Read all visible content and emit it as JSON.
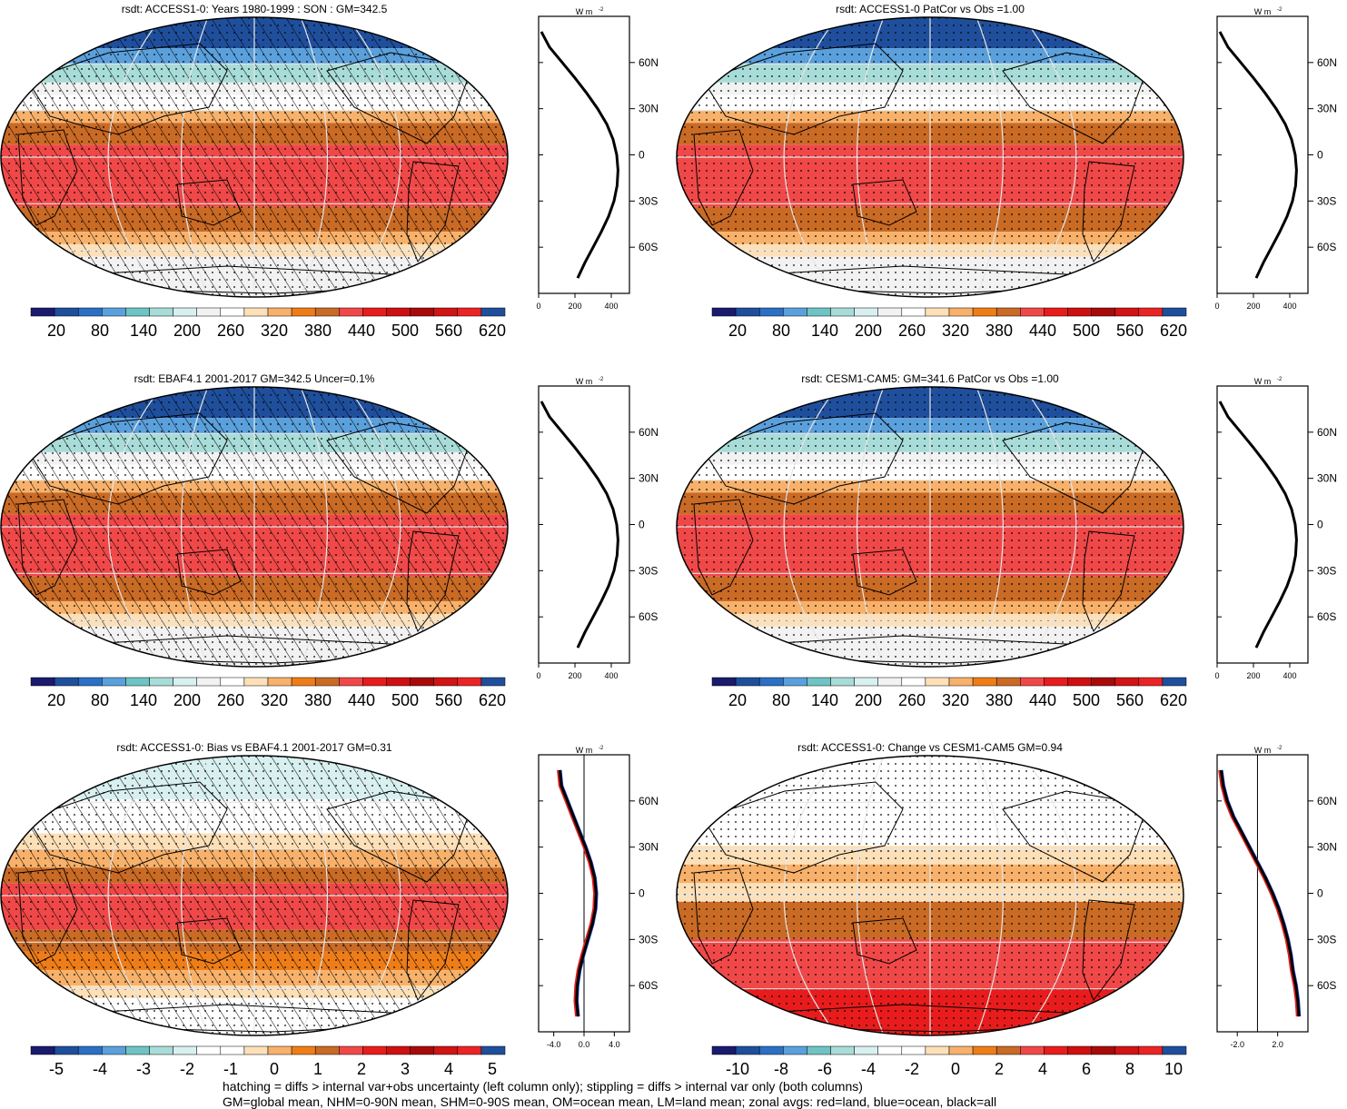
{
  "palette_abs": [
    "#1a1a6e",
    "#1f4f9c",
    "#2b70c4",
    "#5aa0dc",
    "#6ec4c4",
    "#a8dcd8",
    "#d8f0f0",
    "#f2f2f2",
    "#ffffff",
    "#fde0b8",
    "#f7b16a",
    "#ee7d18",
    "#c96a25",
    "#f04848",
    "#e81c1c",
    "#cf1010",
    "#a80a0a",
    "#d11414",
    "#ea2424",
    "#1f4f9c"
  ],
  "palette_bias": [
    "#1a1a6e",
    "#1f4f9c",
    "#2b70c4",
    "#5aa0dc",
    "#6ec4c4",
    "#a8dcd8",
    "#d8f0f0",
    "#ffffff",
    "#ffffff",
    "#fde0b8",
    "#f7b16a",
    "#ee7d18",
    "#c96a25",
    "#f04848",
    "#e81c1c",
    "#cf1010",
    "#a80a0a",
    "#d11414",
    "#ea2424",
    "#1f4f9c"
  ],
  "footer": {
    "line1": "hatching = diffs > internal var+obs uncertainty (left column only); stippling = diffs > internal var only (both columns)",
    "line2": "GM=global mean, NHM=0-90N mean, SHM=0-90S mean, OM=ocean mean, LM=land mean; zonal avgs: red=land, blue=ocean, black=all"
  },
  "chart_data": [
    {
      "type": "heatmap",
      "title": "rsdt: ACCESS1-0: Years 1980-1999 : SON : GM=342.5",
      "colorbar_labels": [
        "20",
        "80",
        "140",
        "200",
        "260",
        "320",
        "380",
        "440",
        "500",
        "560",
        "620"
      ],
      "hatched": true,
      "zonal": {
        "unit": "W m",
        "xticks": [
          "0",
          "200",
          "400"
        ],
        "xlim": [
          0,
          500
        ],
        "yticks": [
          "60N",
          "30N",
          "0",
          "30S",
          "60S"
        ],
        "lat": [
          80,
          70,
          60,
          50,
          40,
          30,
          20,
          10,
          0,
          -10,
          -20,
          -30,
          -40,
          -50,
          -60,
          -70,
          -80
        ],
        "values": [
          15,
          60,
          130,
          200,
          265,
          325,
          375,
          410,
          430,
          437,
          432,
          415,
          385,
          345,
          300,
          255,
          215
        ]
      }
    },
    {
      "type": "heatmap",
      "title": "rsdt: ACCESS1-0 PatCor vs Obs =1.00",
      "colorbar_labels": [
        "20",
        "80",
        "140",
        "200",
        "260",
        "320",
        "380",
        "440",
        "500",
        "560",
        "620"
      ],
      "hatched": false,
      "zonal": {
        "unit": "W m",
        "xticks": [
          "0",
          "200",
          "400"
        ],
        "xlim": [
          0,
          500
        ],
        "yticks": [
          "60N",
          "30N",
          "0",
          "30S",
          "60S"
        ],
        "lat": [
          80,
          70,
          60,
          50,
          40,
          30,
          20,
          10,
          0,
          -10,
          -20,
          -30,
          -40,
          -50,
          -60,
          -70,
          -80
        ],
        "values": [
          15,
          60,
          130,
          200,
          265,
          325,
          375,
          410,
          430,
          437,
          432,
          415,
          385,
          345,
          300,
          255,
          215
        ]
      }
    },
    {
      "type": "heatmap",
      "title": "rsdt: EBAF4.1 2001-2017 GM=342.5 Uncer=0.1%",
      "colorbar_labels": [
        "20",
        "80",
        "140",
        "200",
        "260",
        "320",
        "380",
        "440",
        "500",
        "560",
        "620"
      ],
      "hatched": true,
      "zonal": {
        "unit": "W m",
        "xticks": [
          "0",
          "200",
          "400"
        ],
        "xlim": [
          0,
          500
        ],
        "yticks": [
          "60N",
          "30N",
          "0",
          "30S",
          "60S"
        ],
        "lat": [
          80,
          70,
          60,
          50,
          40,
          30,
          20,
          10,
          0,
          -10,
          -20,
          -30,
          -40,
          -50,
          -60,
          -70,
          -80
        ],
        "values": [
          15,
          60,
          130,
          200,
          265,
          325,
          375,
          410,
          430,
          437,
          432,
          415,
          385,
          345,
          300,
          255,
          215
        ]
      }
    },
    {
      "type": "heatmap",
      "title": "rsdt: CESM1-CAM5: GM=341.6 PatCor vs Obs =1.00",
      "colorbar_labels": [
        "20",
        "80",
        "140",
        "200",
        "260",
        "320",
        "380",
        "440",
        "500",
        "560",
        "620"
      ],
      "hatched": false,
      "zonal": {
        "unit": "W m",
        "xticks": [
          "0",
          "200",
          "400"
        ],
        "xlim": [
          0,
          500
        ],
        "yticks": [
          "60N",
          "30N",
          "0",
          "30S",
          "60S"
        ],
        "lat": [
          80,
          70,
          60,
          50,
          40,
          30,
          20,
          10,
          0,
          -10,
          -20,
          -30,
          -40,
          -50,
          -60,
          -70,
          -80
        ],
        "values": [
          15,
          60,
          130,
          200,
          265,
          325,
          375,
          410,
          430,
          437,
          432,
          415,
          385,
          345,
          300,
          255,
          215
        ]
      }
    },
    {
      "type": "heatmap",
      "title": "rsdt: ACCESS1-0: Bias vs EBAF4.1 2001-2017  GM=0.31",
      "colorbar_labels": [
        "-5",
        "-4",
        "-3",
        "-2",
        "-1",
        "0",
        "1",
        "2",
        "3",
        "4",
        "5"
      ],
      "hatched": true,
      "zonal": {
        "unit": "W m",
        "xticks": [
          "-4.0",
          "0.0",
          "4.0"
        ],
        "xlim": [
          -6,
          6
        ],
        "yticks": [
          "60N",
          "30N",
          "0",
          "30S",
          "60S"
        ],
        "lat": [
          80,
          70,
          60,
          50,
          40,
          30,
          20,
          10,
          0,
          -10,
          -20,
          -30,
          -40,
          -50,
          -60,
          -70,
          -80
        ],
        "values": [
          -3.2,
          -3.0,
          -2.2,
          -1.4,
          -0.6,
          0.2,
          0.9,
          1.4,
          1.6,
          1.5,
          1.1,
          0.5,
          -0.1,
          -0.6,
          -0.9,
          -1.0,
          -0.8
        ]
      }
    },
    {
      "type": "heatmap",
      "title": "rsdt: ACCESS1-0: Change vs CESM1-CAM5 GM=0.94",
      "colorbar_labels": [
        "-10",
        "-8",
        "-6",
        "-4",
        "-2",
        "0",
        "2",
        "4",
        "6",
        "8",
        "10"
      ],
      "hatched": false,
      "zonal": {
        "unit": "W m",
        "xticks": [
          "-2.0",
          "2.0"
        ],
        "xlim": [
          -4,
          5
        ],
        "yticks": [
          "60N",
          "30N",
          "0",
          "30S",
          "60S"
        ],
        "lat": [
          80,
          70,
          60,
          50,
          40,
          30,
          20,
          10,
          0,
          -10,
          -20,
          -30,
          -40,
          -50,
          -60,
          -70,
          -80
        ],
        "values": [
          -3.6,
          -3.4,
          -3.0,
          -2.4,
          -1.6,
          -0.8,
          0.0,
          0.8,
          1.5,
          2.1,
          2.6,
          3.0,
          3.3,
          3.5,
          3.8,
          4.0,
          4.1
        ]
      }
    }
  ]
}
